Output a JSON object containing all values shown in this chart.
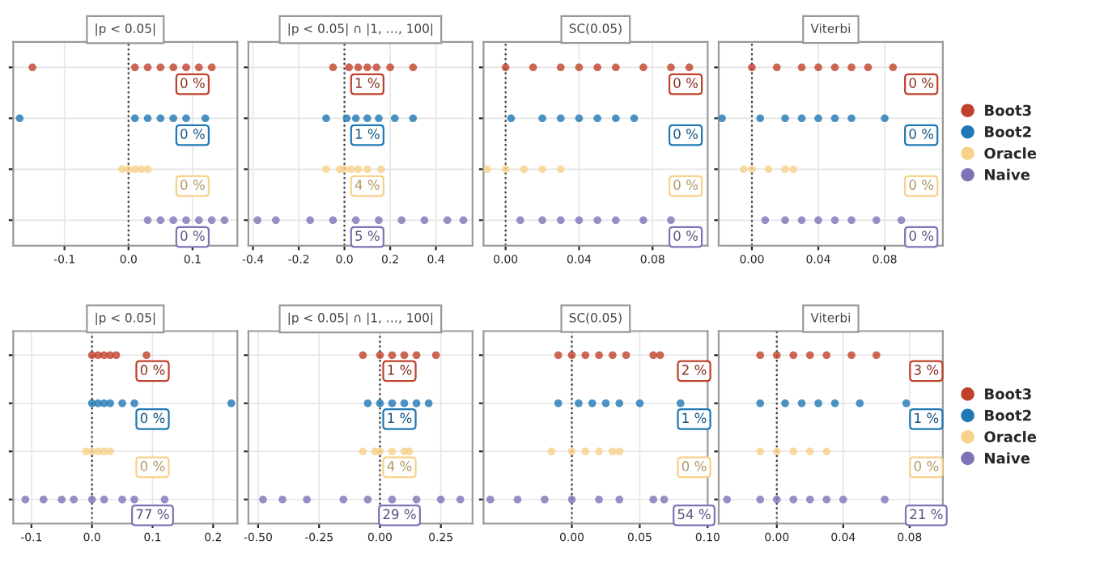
{
  "chart_data": [
    {
      "type": "scatter",
      "title": "|p < 0.05|",
      "orientation": "horizontal",
      "categories": [
        null,
        null,
        null,
        null
      ],
      "xlim": [
        -0.18,
        0.17
      ],
      "xticks": [
        {
          "value": -0.1,
          "label": "-0.1"
        },
        {
          "value": 0,
          "label": "0.0"
        },
        {
          "value": 0.1,
          "label": "0.1"
        }
      ],
      "grid": true,
      "legend": false,
      "ref_lines": [
        {
          "axis": "x",
          "value": 0,
          "line_style": "dotted"
        }
      ],
      "series": [
        {
          "color": "#c0412c",
          "values": [
            -0.15,
            null,
            null,
            null
          ]
        },
        {
          "color": "#1f78b4",
          "values": [
            null,
            -0.17,
            null,
            null
          ]
        },
        {
          "color": "#f8d18a",
          "values": [
            null,
            null,
            -0.01,
            null
          ]
        },
        {
          "color": "#7d74b6",
          "values": [
            null,
            null,
            null,
            0.03
          ]
        },
        {
          "colors": [
            "#c0412c",
            "#1f78b4",
            "#f8d18a",
            "#7d74b6"
          ],
          "values": [
            0.01,
            0.01,
            0,
            0.05
          ]
        },
        {
          "colors": [
            "#c0412c",
            "#1f78b4",
            "#f8d18a",
            "#7d74b6"
          ],
          "values": [
            0.03,
            0.03,
            0.01,
            0.07
          ]
        },
        {
          "colors": [
            "#c0412c",
            "#1f78b4",
            "#f8d18a",
            "#7d74b6"
          ],
          "values": [
            0.05,
            0.05,
            0.02,
            0.09
          ]
        },
        {
          "colors": [
            "#c0412c",
            "#1f78b4",
            "#f8d18a",
            "#7d74b6"
          ],
          "values": [
            0.07,
            0.07,
            0.03,
            0.11
          ]
        },
        {
          "colors": [
            "#c0412c",
            "#1f78b4",
            "#f8d18a",
            "#7d74b6"
          ],
          "values": [
            0.09,
            0.09,
            null,
            0.13
          ]
        },
        {
          "colors": [
            "#c0412c",
            "#1f78b4",
            "#f8d18a",
            "#7d74b6"
          ],
          "values": [
            0.11,
            0.12,
            null,
            0.15
          ]
        },
        {
          "colors": [
            "#c0412c",
            "#1f78b4",
            "#f8d18a",
            "#7d74b6"
          ],
          "values": [
            0.13,
            null,
            null,
            null
          ]
        }
      ],
      "annotations": [
        {
          "text": "0 %",
          "x": 0.1
        },
        {
          "text": "0 %",
          "x": 0.1
        },
        {
          "text": "0 %",
          "x": 0.1
        },
        {
          "text": "0 %",
          "x": 0.1
        }
      ]
    },
    {
      "type": "scatter",
      "title": "|p < 0.05| ∩ |1, …, 100|",
      "orientation": "horizontal",
      "categories": [
        null,
        null,
        null,
        null
      ],
      "xlim": [
        -0.42,
        0.56
      ],
      "xticks": [
        {
          "value": -0.4,
          "label": "-0.4"
        },
        {
          "value": -0.2,
          "label": "-0.2"
        },
        {
          "value": 0,
          "label": "0.0"
        },
        {
          "value": 0.2,
          "label": "0.2"
        },
        {
          "value": 0.4,
          "label": "0.4"
        }
      ],
      "grid": true,
      "legend": false,
      "ref_lines": [
        {
          "axis": "x",
          "value": 0,
          "line_style": "dotted"
        }
      ],
      "series": [
        {
          "color": "#c0412c",
          "values": [
            -0.05,
            null,
            null,
            null
          ]
        },
        {
          "color": "#1f78b4",
          "values": [
            null,
            -0.08,
            null,
            null
          ]
        },
        {
          "color": "#f8d18a",
          "values": [
            null,
            null,
            -0.08,
            null
          ]
        },
        {
          "color": "#7d74b6",
          "values": [
            null,
            null,
            null,
            -0.38
          ]
        },
        {
          "colors": [
            "#c0412c",
            "#1f78b4",
            "#f8d18a",
            "#7d74b6"
          ],
          "values": [
            0.02,
            0.01,
            -0.02,
            -0.3
          ]
        },
        {
          "colors": [
            "#c0412c",
            "#1f78b4",
            "#f8d18a",
            "#7d74b6"
          ],
          "values": [
            0.06,
            0.05,
            0,
            -0.15
          ]
        },
        {
          "colors": [
            "#c0412c",
            "#1f78b4",
            "#f8d18a",
            "#7d74b6"
          ],
          "values": [
            0.1,
            0.1,
            0.03,
            -0.05
          ]
        },
        {
          "colors": [
            "#c0412c",
            "#1f78b4",
            "#f8d18a",
            "#7d74b6"
          ],
          "values": [
            0.14,
            0.15,
            0.06,
            0.05
          ]
        },
        {
          "colors": [
            "#c0412c",
            "#1f78b4",
            "#f8d18a",
            "#7d74b6"
          ],
          "values": [
            0.2,
            0.22,
            0.1,
            0.15
          ]
        },
        {
          "colors": [
            "#c0412c",
            "#1f78b4",
            "#f8d18a",
            "#7d74b6"
          ],
          "values": [
            0.3,
            0.3,
            0.16,
            0.25
          ]
        },
        {
          "colors": [
            "#c0412c",
            "#1f78b4",
            "#f8d18a",
            "#7d74b6"
          ],
          "values": [
            null,
            null,
            null,
            0.35
          ]
        },
        {
          "colors": [
            "#c0412c",
            "#1f78b4",
            "#f8d18a",
            "#7d74b6"
          ],
          "values": [
            null,
            null,
            null,
            0.45
          ]
        },
        {
          "colors": [
            "#c0412c",
            "#1f78b4",
            "#f8d18a",
            "#7d74b6"
          ],
          "values": [
            null,
            null,
            null,
            0.52
          ]
        }
      ],
      "annotations": [
        {
          "text": "1 %",
          "x": 0.1
        },
        {
          "text": "1 %",
          "x": 0.1
        },
        {
          "text": "4 %",
          "x": 0.1
        },
        {
          "text": "5 %",
          "x": 0.1
        }
      ]
    },
    {
      "type": "scatter",
      "title": "SC(0.05)",
      "orientation": "horizontal",
      "categories": [
        null,
        null,
        null,
        null
      ],
      "xlim": [
        -0.012,
        0.11
      ],
      "xticks": [
        {
          "value": 0,
          "label": "0.00"
        },
        {
          "value": 0.04,
          "label": "0.04"
        },
        {
          "value": 0.08,
          "label": "0.08"
        }
      ],
      "grid": true,
      "legend": false,
      "ref_lines": [
        {
          "axis": "x",
          "value": 0,
          "line_style": "dotted"
        }
      ],
      "series": [
        {
          "color": "#c0412c",
          "values": [
            0,
            null,
            null,
            null
          ]
        },
        {
          "color": "#1f78b4",
          "values": [
            null,
            0.003,
            null,
            null
          ]
        },
        {
          "color": "#f8d18a",
          "values": [
            null,
            null,
            -0.01,
            null
          ]
        },
        {
          "color": "#7d74b6",
          "values": [
            null,
            null,
            null,
            0.008
          ]
        },
        {
          "colors": [
            "#c0412c",
            "#1f78b4",
            "#f8d18a",
            "#7d74b6"
          ],
          "values": [
            0.015,
            0.02,
            0,
            0.02
          ]
        },
        {
          "colors": [
            "#c0412c",
            "#1f78b4",
            "#f8d18a",
            "#7d74b6"
          ],
          "values": [
            0.03,
            0.03,
            0.01,
            0.03
          ]
        },
        {
          "colors": [
            "#c0412c",
            "#1f78b4",
            "#f8d18a",
            "#7d74b6"
          ],
          "values": [
            0.04,
            0.04,
            0.02,
            0.04
          ]
        },
        {
          "colors": [
            "#c0412c",
            "#1f78b4",
            "#f8d18a",
            "#7d74b6"
          ],
          "values": [
            0.05,
            0.05,
            0.03,
            0.05
          ]
        },
        {
          "colors": [
            "#c0412c",
            "#1f78b4",
            "#f8d18a",
            "#7d74b6"
          ],
          "values": [
            0.06,
            0.06,
            null,
            0.06
          ]
        },
        {
          "colors": [
            "#c0412c",
            "#1f78b4",
            "#f8d18a",
            "#7d74b6"
          ],
          "values": [
            0.075,
            0.07,
            null,
            0.075
          ]
        },
        {
          "colors": [
            "#c0412c",
            "#1f78b4",
            "#f8d18a",
            "#7d74b6"
          ],
          "values": [
            0.09,
            null,
            null,
            0.09
          ]
        },
        {
          "colors": [
            "#c0412c",
            "#1f78b4",
            "#f8d18a",
            "#7d74b6"
          ],
          "values": [
            0.1,
            null,
            null,
            null
          ]
        }
      ],
      "annotations": [
        {
          "text": "0 %",
          "x": 0.098
        },
        {
          "text": "0 %",
          "x": 0.098
        },
        {
          "text": "0 %",
          "x": 0.098
        },
        {
          "text": "0 %",
          "x": 0.098
        }
      ]
    },
    {
      "type": "scatter",
      "title": "Viterbi",
      "orientation": "horizontal",
      "categories": [
        null,
        null,
        null,
        null
      ],
      "xlim": [
        -0.02,
        0.115
      ],
      "xticks": [
        {
          "value": 0,
          "label": "0.00"
        },
        {
          "value": 0.04,
          "label": "0.04"
        },
        {
          "value": 0.08,
          "label": "0.08"
        }
      ],
      "grid": true,
      "legend": "right",
      "ref_lines": [
        {
          "axis": "x",
          "value": 0,
          "line_style": "dotted"
        }
      ],
      "series": [
        {
          "name": "Boot3",
          "color": "#c0412c",
          "values": [
            0,
            null,
            null,
            null
          ]
        },
        {
          "name": "Boot2",
          "color": "#1f78b4",
          "values": [
            null,
            -0.018,
            null,
            null
          ]
        },
        {
          "name": "Oracle",
          "color": "#f8d18a",
          "values": [
            null,
            null,
            -0.005,
            null
          ]
        },
        {
          "name": "Naive",
          "color": "#7d74b6",
          "values": [
            null,
            null,
            null,
            0.008
          ]
        },
        {
          "colors": [
            "#c0412c",
            "#1f78b4",
            "#f8d18a",
            "#7d74b6"
          ],
          "values": [
            0.015,
            0.005,
            0,
            0.02
          ]
        },
        {
          "colors": [
            "#c0412c",
            "#1f78b4",
            "#f8d18a",
            "#7d74b6"
          ],
          "values": [
            0.03,
            0.02,
            0.01,
            0.03
          ]
        },
        {
          "colors": [
            "#c0412c",
            "#1f78b4",
            "#f8d18a",
            "#7d74b6"
          ],
          "values": [
            0.04,
            0.03,
            0.02,
            0.04
          ]
        },
        {
          "colors": [
            "#c0412c",
            "#1f78b4",
            "#f8d18a",
            "#7d74b6"
          ],
          "values": [
            0.05,
            0.04,
            0.025,
            0.05
          ]
        },
        {
          "colors": [
            "#c0412c",
            "#1f78b4",
            "#f8d18a",
            "#7d74b6"
          ],
          "values": [
            0.06,
            0.05,
            null,
            0.06
          ]
        },
        {
          "colors": [
            "#c0412c",
            "#1f78b4",
            "#f8d18a",
            "#7d74b6"
          ],
          "values": [
            0.07,
            0.06,
            null,
            0.075
          ]
        },
        {
          "colors": [
            "#c0412c",
            "#1f78b4",
            "#f8d18a",
            "#7d74b6"
          ],
          "values": [
            0.085,
            0.08,
            null,
            0.09
          ]
        }
      ],
      "annotations": [
        {
          "text": "0 %",
          "x": 0.102
        },
        {
          "text": "0 %",
          "x": 0.102
        },
        {
          "text": "0 %",
          "x": 0.102
        },
        {
          "text": "0 %",
          "x": 0.102
        }
      ]
    },
    {
      "type": "scatter",
      "title": "|p < 0.05|",
      "orientation": "horizontal",
      "categories": [
        null,
        null,
        null,
        null
      ],
      "xlim": [
        -0.13,
        0.24
      ],
      "xticks": [
        {
          "value": -0.1,
          "label": "-0.1"
        },
        {
          "value": 0,
          "label": "0.0"
        },
        {
          "value": 0.1,
          "label": "0.1"
        },
        {
          "value": 0.2,
          "label": "0.2"
        }
      ],
      "grid": true,
      "legend": false,
      "ref_lines": [
        {
          "axis": "x",
          "value": 0,
          "line_style": "dotted"
        }
      ],
      "series": [
        {
          "color": "#c0412c",
          "values": [
            0,
            null,
            null,
            null
          ]
        },
        {
          "color": "#1f78b4",
          "values": [
            null,
            0,
            null,
            null
          ]
        },
        {
          "color": "#f8d18a",
          "values": [
            null,
            null,
            -0.01,
            null
          ]
        },
        {
          "color": "#7d74b6",
          "values": [
            null,
            null,
            null,
            -0.11
          ]
        },
        {
          "colors": [
            "#c0412c",
            "#1f78b4",
            "#f8d18a",
            "#7d74b6"
          ],
          "values": [
            0.01,
            0.01,
            0,
            -0.08
          ]
        },
        {
          "colors": [
            "#c0412c",
            "#1f78b4",
            "#f8d18a",
            "#7d74b6"
          ],
          "values": [
            0.02,
            0.02,
            0.01,
            -0.05
          ]
        },
        {
          "colors": [
            "#c0412c",
            "#1f78b4",
            "#f8d18a",
            "#7d74b6"
          ],
          "values": [
            0.03,
            0.03,
            0.02,
            -0.03
          ]
        },
        {
          "colors": [
            "#c0412c",
            "#1f78b4",
            "#f8d18a",
            "#7d74b6"
          ],
          "values": [
            0.04,
            0.05,
            0.03,
            0
          ]
        },
        {
          "colors": [
            "#c0412c",
            "#1f78b4",
            "#f8d18a",
            "#7d74b6"
          ],
          "values": [
            0.09,
            0.07,
            null,
            0.02
          ]
        },
        {
          "colors": [
            "#c0412c",
            "#1f78b4",
            "#f8d18a",
            "#7d74b6"
          ],
          "values": [
            null,
            0.23,
            null,
            0.05
          ]
        },
        {
          "colors": [
            "#c0412c",
            "#1f78b4",
            "#f8d18a",
            "#7d74b6"
          ],
          "values": [
            null,
            null,
            null,
            0.07
          ]
        },
        {
          "colors": [
            "#c0412c",
            "#1f78b4",
            "#f8d18a",
            "#7d74b6"
          ],
          "values": [
            null,
            null,
            null,
            0.12
          ]
        }
      ],
      "annotations": [
        {
          "text": "0 %",
          "x": 0.1
        },
        {
          "text": "0 %",
          "x": 0.1
        },
        {
          "text": "0 %",
          "x": 0.1
        },
        {
          "text": "77 %",
          "x": 0.1
        }
      ]
    },
    {
      "type": "scatter",
      "title": "|p < 0.05| ∩ |1, …, 100|",
      "orientation": "horizontal",
      "categories": [
        null,
        null,
        null,
        null
      ],
      "xlim": [
        -0.54,
        0.38
      ],
      "xticks": [
        {
          "value": -0.5,
          "label": "-0.50"
        },
        {
          "value": -0.25,
          "label": "-0.25"
        },
        {
          "value": 0,
          "label": "0.00"
        },
        {
          "value": 0.25,
          "label": "0.25"
        }
      ],
      "grid": true,
      "legend": false,
      "ref_lines": [
        {
          "axis": "x",
          "value": 0,
          "line_style": "dotted"
        }
      ],
      "series": [
        {
          "color": "#c0412c",
          "values": [
            -0.07,
            null,
            null,
            null
          ]
        },
        {
          "color": "#1f78b4",
          "values": [
            null,
            -0.05,
            null,
            null
          ]
        },
        {
          "color": "#f8d18a",
          "values": [
            null,
            null,
            -0.07,
            null
          ]
        },
        {
          "color": "#7d74b6",
          "values": [
            null,
            null,
            null,
            -0.48
          ]
        },
        {
          "colors": [
            "#c0412c",
            "#1f78b4",
            "#f8d18a",
            "#7d74b6"
          ],
          "values": [
            0,
            0,
            -0.02,
            -0.4
          ]
        },
        {
          "colors": [
            "#c0412c",
            "#1f78b4",
            "#f8d18a",
            "#7d74b6"
          ],
          "values": [
            0.05,
            0.05,
            0,
            -0.3
          ]
        },
        {
          "colors": [
            "#c0412c",
            "#1f78b4",
            "#f8d18a",
            "#7d74b6"
          ],
          "values": [
            0.1,
            0.1,
            0.05,
            -0.15
          ]
        },
        {
          "colors": [
            "#c0412c",
            "#1f78b4",
            "#f8d18a",
            "#7d74b6"
          ],
          "values": [
            0.15,
            0.15,
            0.1,
            -0.05
          ]
        },
        {
          "colors": [
            "#c0412c",
            "#1f78b4",
            "#f8d18a",
            "#7d74b6"
          ],
          "values": [
            0.23,
            0.2,
            0.12,
            0.05
          ]
        },
        {
          "colors": [
            "#c0412c",
            "#1f78b4",
            "#f8d18a",
            "#7d74b6"
          ],
          "values": [
            null,
            null,
            null,
            0.15
          ]
        },
        {
          "colors": [
            "#c0412c",
            "#1f78b4",
            "#f8d18a",
            "#7d74b6"
          ],
          "values": [
            null,
            null,
            null,
            0.25
          ]
        },
        {
          "colors": [
            "#c0412c",
            "#1f78b4",
            "#f8d18a",
            "#7d74b6"
          ],
          "values": [
            null,
            null,
            null,
            0.33
          ]
        }
      ],
      "annotations": [
        {
          "text": "1 %",
          "x": 0.08
        },
        {
          "text": "1 %",
          "x": 0.08
        },
        {
          "text": "4 %",
          "x": 0.08
        },
        {
          "text": "29 %",
          "x": 0.08
        }
      ]
    },
    {
      "type": "scatter",
      "title": "SC(0.05)",
      "orientation": "horizontal",
      "categories": [
        null,
        null,
        null,
        null
      ],
      "xlim": [
        -0.065,
        0.1
      ],
      "xticks": [
        {
          "value": 0,
          "label": "0.00"
        },
        {
          "value": 0.05,
          "label": "0.05"
        },
        {
          "value": 0.1,
          "label": "0.10"
        }
      ],
      "grid": true,
      "legend": false,
      "ref_lines": [
        {
          "axis": "x",
          "value": 0,
          "line_style": "dotted"
        }
      ],
      "series": [
        {
          "color": "#c0412c",
          "values": [
            -0.01,
            null,
            null,
            null
          ]
        },
        {
          "color": "#1f78b4",
          "values": [
            null,
            -0.01,
            null,
            null
          ]
        },
        {
          "color": "#f8d18a",
          "values": [
            null,
            null,
            -0.015,
            null
          ]
        },
        {
          "color": "#7d74b6",
          "values": [
            null,
            null,
            null,
            -0.06
          ]
        },
        {
          "colors": [
            "#c0412c",
            "#1f78b4",
            "#f8d18a",
            "#7d74b6"
          ],
          "values": [
            0,
            0.005,
            0,
            -0.04
          ]
        },
        {
          "colors": [
            "#c0412c",
            "#1f78b4",
            "#f8d18a",
            "#7d74b6"
          ],
          "values": [
            0.01,
            0.015,
            0.01,
            -0.02
          ]
        },
        {
          "colors": [
            "#c0412c",
            "#1f78b4",
            "#f8d18a",
            "#7d74b6"
          ],
          "values": [
            0.02,
            0.025,
            0.02,
            0
          ]
        },
        {
          "colors": [
            "#c0412c",
            "#1f78b4",
            "#f8d18a",
            "#7d74b6"
          ],
          "values": [
            0.03,
            0.035,
            0.03,
            0.02
          ]
        },
        {
          "colors": [
            "#c0412c",
            "#1f78b4",
            "#f8d18a",
            "#7d74b6"
          ],
          "values": [
            0.04,
            0.05,
            0.035,
            0.035
          ]
        },
        {
          "colors": [
            "#c0412c",
            "#1f78b4",
            "#f8d18a",
            "#7d74b6"
          ],
          "values": [
            0.06,
            0.08,
            null,
            0.06
          ]
        },
        {
          "colors": [
            "#c0412c",
            "#1f78b4",
            "#f8d18a",
            "#7d74b6"
          ],
          "values": [
            0.065,
            null,
            null,
            0.068
          ]
        }
      ],
      "annotations": [
        {
          "text": "2 %",
          "x": 0.09
        },
        {
          "text": "1 %",
          "x": 0.09
        },
        {
          "text": "0 %",
          "x": 0.09
        },
        {
          "text": "54 %",
          "x": 0.09
        }
      ]
    },
    {
      "type": "scatter",
      "title": "Viterbi",
      "orientation": "horizontal",
      "categories": [
        null,
        null,
        null,
        null
      ],
      "xlim": [
        -0.035,
        0.1
      ],
      "xticks": [
        {
          "value": 0,
          "label": "0.00"
        },
        {
          "value": 0.04,
          "label": "0.04"
        },
        {
          "value": 0.08,
          "label": "0.08"
        }
      ],
      "grid": true,
      "legend": "right",
      "ref_lines": [
        {
          "axis": "x",
          "value": 0,
          "line_style": "dotted"
        }
      ],
      "series": [
        {
          "name": "Boot3",
          "color": "#c0412c",
          "values": [
            -0.01,
            null,
            null,
            null
          ]
        },
        {
          "name": "Boot2",
          "color": "#1f78b4",
          "values": [
            null,
            -0.01,
            null,
            null
          ]
        },
        {
          "name": "Oracle",
          "color": "#f8d18a",
          "values": [
            null,
            null,
            -0.01,
            null
          ]
        },
        {
          "name": "Naive",
          "color": "#7d74b6",
          "values": [
            null,
            null,
            null,
            -0.03
          ]
        },
        {
          "colors": [
            "#c0412c",
            "#1f78b4",
            "#f8d18a",
            "#7d74b6"
          ],
          "values": [
            0,
            0.005,
            0,
            -0.01
          ]
        },
        {
          "colors": [
            "#c0412c",
            "#1f78b4",
            "#f8d18a",
            "#7d74b6"
          ],
          "values": [
            0.01,
            0.015,
            0.01,
            0
          ]
        },
        {
          "colors": [
            "#c0412c",
            "#1f78b4",
            "#f8d18a",
            "#7d74b6"
          ],
          "values": [
            0.02,
            0.025,
            0.02,
            0.01
          ]
        },
        {
          "colors": [
            "#c0412c",
            "#1f78b4",
            "#f8d18a",
            "#7d74b6"
          ],
          "values": [
            0.03,
            0.035,
            0.03,
            0.02
          ]
        },
        {
          "colors": [
            "#c0412c",
            "#1f78b4",
            "#f8d18a",
            "#7d74b6"
          ],
          "values": [
            0.045,
            0.05,
            null,
            0.03
          ]
        },
        {
          "colors": [
            "#c0412c",
            "#1f78b4",
            "#f8d18a",
            "#7d74b6"
          ],
          "values": [
            0.06,
            0.078,
            null,
            0.04
          ]
        },
        {
          "colors": [
            "#c0412c",
            "#1f78b4",
            "#f8d18a",
            "#7d74b6"
          ],
          "values": [
            null,
            null,
            null,
            0.065
          ]
        }
      ],
      "annotations": [
        {
          "text": "3 %",
          "x": 0.09
        },
        {
          "text": "1 %",
          "x": 0.09
        },
        {
          "text": "0 %",
          "x": 0.09
        },
        {
          "text": "21 %",
          "x": 0.09
        }
      ]
    }
  ]
}
